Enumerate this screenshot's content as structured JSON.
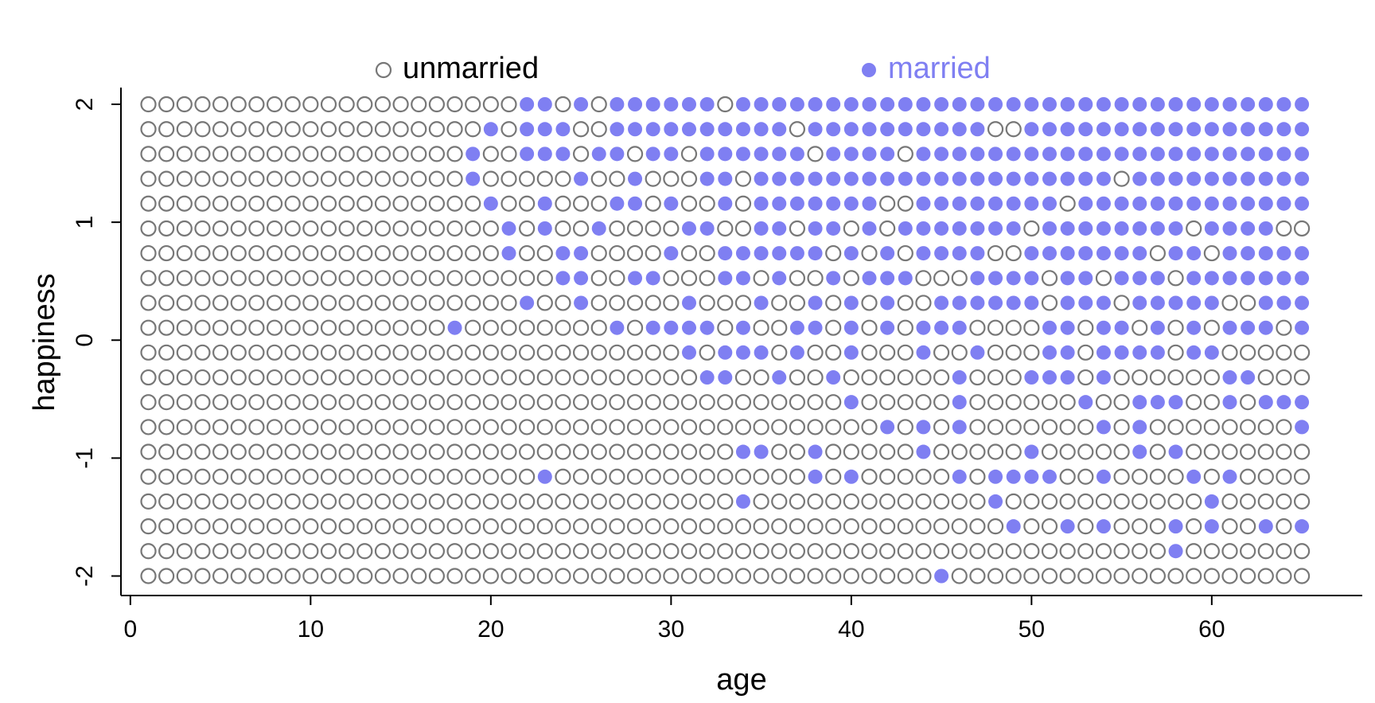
{
  "chart_data": {
    "type": "scatter",
    "title": "",
    "xlabel": "age",
    "ylabel": "happiness",
    "xlim": [
      0,
      67
    ],
    "ylim": [
      -2,
      2
    ],
    "x_ticks": [
      0,
      10,
      20,
      30,
      40,
      50,
      60
    ],
    "y_ticks": [
      -2,
      -1,
      0,
      1,
      2
    ],
    "x_tick_labels": [
      "0",
      "10",
      "20",
      "30",
      "40",
      "50",
      "60"
    ],
    "y_tick_labels": [
      "-2",
      "-1",
      "0",
      "1",
      "2"
    ],
    "grid": false,
    "legend": {
      "placement": "top",
      "entries": [
        {
          "label": "unmarried",
          "marker": "open-circle",
          "color": "#777777",
          "text_color": "#000000"
        },
        {
          "label": "married",
          "marker": "filled-circle",
          "color": "#7f7ff2",
          "text_color": "#7f7ff2"
        }
      ]
    },
    "ages": [
      1,
      65
    ],
    "happiness_levels": [
      2.0,
      1.789,
      1.579,
      1.368,
      1.158,
      0.947,
      0.737,
      0.526,
      0.316,
      0.105,
      -0.105,
      -0.316,
      -0.526,
      -0.737,
      -0.947,
      -1.158,
      -1.368,
      -1.579,
      -1.789,
      -2.0
    ],
    "married_points": [
      [
        22,
        23,
        25,
        27,
        28,
        29,
        30,
        31,
        32,
        34,
        35,
        36,
        37,
        38,
        39,
        40,
        41,
        42,
        43,
        44,
        45,
        46,
        47,
        48,
        49,
        50,
        51,
        52,
        53,
        54,
        55,
        56,
        57,
        58,
        59,
        60,
        61,
        62,
        63,
        64,
        65
      ],
      [
        20,
        22,
        23,
        24,
        27,
        28,
        29,
        30,
        31,
        32,
        33,
        34,
        35,
        36,
        38,
        39,
        40,
        41,
        42,
        43,
        44,
        45,
        46,
        47,
        50,
        51,
        52,
        53,
        54,
        55,
        56,
        57,
        58,
        59,
        60,
        61,
        62,
        63,
        64,
        65
      ],
      [
        19,
        22,
        23,
        24,
        26,
        27,
        29,
        30,
        32,
        33,
        34,
        35,
        36,
        37,
        39,
        40,
        41,
        42,
        44,
        45,
        46,
        47,
        48,
        49,
        50,
        51,
        52,
        53,
        54,
        55,
        56,
        57,
        58,
        59,
        60,
        61,
        62,
        63,
        64,
        65
      ],
      [
        19,
        25,
        28,
        32,
        33,
        35,
        36,
        37,
        38,
        39,
        40,
        41,
        42,
        43,
        44,
        45,
        46,
        47,
        48,
        49,
        50,
        51,
        52,
        53,
        54,
        56,
        57,
        58,
        59,
        60,
        61,
        62,
        63,
        64,
        65
      ],
      [
        20,
        23,
        27,
        28,
        30,
        33,
        35,
        36,
        37,
        38,
        39,
        40,
        41,
        44,
        45,
        46,
        47,
        48,
        49,
        50,
        51,
        53,
        54,
        55,
        56,
        57,
        58,
        59,
        60,
        61,
        62,
        63,
        64,
        65
      ],
      [
        21,
        23,
        26,
        31,
        32,
        35,
        36,
        38,
        39,
        41,
        43,
        44,
        45,
        46,
        47,
        48,
        49,
        51,
        52,
        53,
        54,
        55,
        56,
        57,
        58,
        60,
        61,
        62,
        63
      ],
      [
        21,
        24,
        25,
        30,
        33,
        34,
        35,
        36,
        37,
        38,
        40,
        42,
        44,
        45,
        46,
        47,
        50,
        51,
        52,
        53,
        54,
        55,
        56,
        58,
        59,
        61,
        62,
        63,
        64,
        65
      ],
      [
        24,
        25,
        28,
        29,
        33,
        34,
        36,
        39,
        41,
        42,
        43,
        47,
        48,
        49,
        50,
        52,
        53,
        55,
        56,
        57,
        59,
        60,
        61,
        62,
        63,
        64,
        65
      ],
      [
        22,
        25,
        31,
        35,
        38,
        40,
        42,
        45,
        46,
        47,
        48,
        49,
        50,
        52,
        53,
        54,
        56,
        57,
        58,
        59,
        60,
        63,
        64,
        65
      ],
      [
        18,
        27,
        29,
        30,
        31,
        32,
        34,
        37,
        38,
        40,
        42,
        44,
        45,
        46,
        51,
        52,
        54,
        55,
        57,
        59,
        61,
        62,
        63,
        65
      ],
      [
        31,
        33,
        34,
        35,
        37,
        40,
        44,
        47,
        51,
        52,
        54,
        55,
        56,
        57,
        59,
        60
      ],
      [
        32,
        33,
        36,
        39,
        46,
        50,
        51,
        52,
        54,
        61,
        62
      ],
      [
        40,
        46,
        53,
        56,
        57,
        58,
        61,
        63,
        64,
        65
      ],
      [
        42,
        44,
        46,
        54,
        56,
        65
      ],
      [
        34,
        35,
        38,
        44,
        50,
        56,
        58
      ],
      [
        23,
        38,
        40,
        46,
        48,
        49,
        50,
        51,
        54,
        59,
        61
      ],
      [
        34,
        48,
        60
      ],
      [
        49,
        52,
        54,
        58,
        60,
        63,
        65
      ],
      [
        58
      ],
      [
        45
      ]
    ]
  }
}
